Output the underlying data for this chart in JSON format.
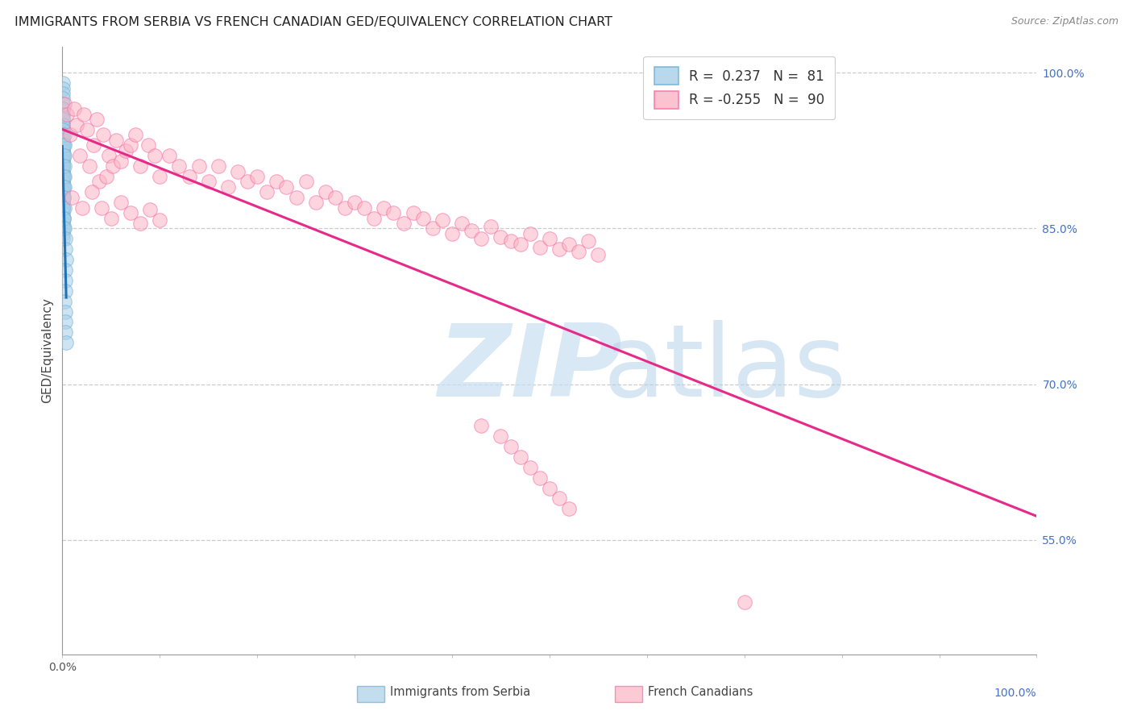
{
  "title": "IMMIGRANTS FROM SERBIA VS FRENCH CANADIAN GED/EQUIVALENCY CORRELATION CHART",
  "source": "Source: ZipAtlas.com",
  "ylabel": "GED/Equivalency",
  "legend_blue_r": "0.237",
  "legend_blue_n": "81",
  "legend_pink_r": "-0.255",
  "legend_pink_n": "90",
  "blue_color": "#a8cfe8",
  "blue_edge_color": "#6aaed6",
  "pink_color": "#fbb4c3",
  "pink_edge_color": "#f768a1",
  "blue_trend_color": "#2171b5",
  "pink_trend_color": "#e7298a",
  "grid_color": "#cccccc",
  "right_axis_color": "#4472c4",
  "ylim_low": 0.44,
  "ylim_high": 1.025,
  "xlim_low": 0.0,
  "xlim_high": 1.0,
  "right_yticks": [
    0.55,
    0.7,
    0.85,
    1.0
  ],
  "right_yticklabels": [
    "55.0%",
    "70.0%",
    "85.0%",
    "100.0%"
  ],
  "serbia_x": [
    0.0002,
    0.0004,
    0.0003,
    0.0005,
    0.0003,
    0.0002,
    0.0004,
    0.0003,
    0.0002,
    0.0005,
    0.0003,
    0.0004,
    0.0002,
    0.0003,
    0.0004,
    0.0002,
    0.0005,
    0.0004,
    0.0003,
    0.0002,
    0.0002,
    0.0003,
    0.0004,
    0.0002,
    0.0003,
    0.0002,
    0.0002,
    0.0003,
    0.0002,
    0.0002,
    0.0002,
    0.0005,
    0.0003,
    0.0002,
    0.0002,
    0.0003,
    0.0004,
    0.0002,
    0.0002,
    0.0003,
    0.0002,
    0.0002,
    0.0002,
    0.0002,
    0.0003,
    0.0002,
    0.0002,
    0.0003,
    0.0002,
    0.0002,
    0.001,
    0.0012,
    0.0008,
    0.0015,
    0.001,
    0.0012,
    0.0009,
    0.0014,
    0.0011,
    0.0008,
    0.002,
    0.0018,
    0.0022,
    0.0025,
    0.0019,
    0.0021,
    0.0017,
    0.0023,
    0.0016,
    0.0024,
    0.003,
    0.0028,
    0.0035,
    0.0032,
    0.0027,
    0.0033,
    0.0026,
    0.0034,
    0.0029,
    0.0031,
    0.0038
  ],
  "serbia_y": [
    0.99,
    0.985,
    0.98,
    0.975,
    0.97,
    0.965,
    0.96,
    0.955,
    0.95,
    0.945,
    0.94,
    0.935,
    0.93,
    0.925,
    0.92,
    0.915,
    0.91,
    0.905,
    0.9,
    0.895,
    0.89,
    0.885,
    0.88,
    0.875,
    0.87,
    0.965,
    0.96,
    0.955,
    0.95,
    0.945,
    0.94,
    0.935,
    0.93,
    0.925,
    0.92,
    0.915,
    0.91,
    0.905,
    0.9,
    0.895,
    0.89,
    0.885,
    0.88,
    0.875,
    0.87,
    0.865,
    0.86,
    0.855,
    0.85,
    0.845,
    0.93,
    0.92,
    0.91,
    0.9,
    0.89,
    0.88,
    0.87,
    0.86,
    0.85,
    0.84,
    0.94,
    0.93,
    0.92,
    0.91,
    0.9,
    0.89,
    0.88,
    0.87,
    0.86,
    0.85,
    0.84,
    0.83,
    0.82,
    0.81,
    0.8,
    0.79,
    0.78,
    0.77,
    0.76,
    0.75,
    0.74
  ],
  "french_x": [
    0.002,
    0.005,
    0.008,
    0.012,
    0.015,
    0.018,
    0.022,
    0.025,
    0.028,
    0.032,
    0.035,
    0.038,
    0.042,
    0.045,
    0.048,
    0.052,
    0.055,
    0.06,
    0.065,
    0.07,
    0.075,
    0.08,
    0.088,
    0.095,
    0.1,
    0.11,
    0.12,
    0.13,
    0.14,
    0.15,
    0.16,
    0.17,
    0.18,
    0.19,
    0.2,
    0.21,
    0.22,
    0.23,
    0.24,
    0.25,
    0.26,
    0.27,
    0.28,
    0.29,
    0.3,
    0.31,
    0.32,
    0.33,
    0.34,
    0.35,
    0.36,
    0.37,
    0.38,
    0.39,
    0.4,
    0.41,
    0.42,
    0.43,
    0.44,
    0.45,
    0.46,
    0.47,
    0.48,
    0.49,
    0.5,
    0.51,
    0.52,
    0.53,
    0.54,
    0.55,
    0.43,
    0.45,
    0.46,
    0.47,
    0.48,
    0.49,
    0.5,
    0.51,
    0.52,
    0.7,
    0.01,
    0.02,
    0.03,
    0.04,
    0.05,
    0.06,
    0.07,
    0.08,
    0.09,
    0.1
  ],
  "french_y": [
    0.97,
    0.96,
    0.94,
    0.965,
    0.95,
    0.92,
    0.96,
    0.945,
    0.91,
    0.93,
    0.955,
    0.895,
    0.94,
    0.9,
    0.92,
    0.91,
    0.935,
    0.915,
    0.925,
    0.93,
    0.94,
    0.91,
    0.93,
    0.92,
    0.9,
    0.92,
    0.91,
    0.9,
    0.91,
    0.895,
    0.91,
    0.89,
    0.905,
    0.895,
    0.9,
    0.885,
    0.895,
    0.89,
    0.88,
    0.895,
    0.875,
    0.885,
    0.88,
    0.87,
    0.875,
    0.87,
    0.86,
    0.87,
    0.865,
    0.855,
    0.865,
    0.86,
    0.85,
    0.858,
    0.845,
    0.855,
    0.848,
    0.84,
    0.852,
    0.842,
    0.838,
    0.835,
    0.845,
    0.832,
    0.84,
    0.83,
    0.835,
    0.828,
    0.838,
    0.825,
    0.66,
    0.65,
    0.64,
    0.63,
    0.62,
    0.61,
    0.6,
    0.59,
    0.58,
    0.49,
    0.88,
    0.87,
    0.885,
    0.87,
    0.86,
    0.875,
    0.865,
    0.855,
    0.868,
    0.858
  ]
}
